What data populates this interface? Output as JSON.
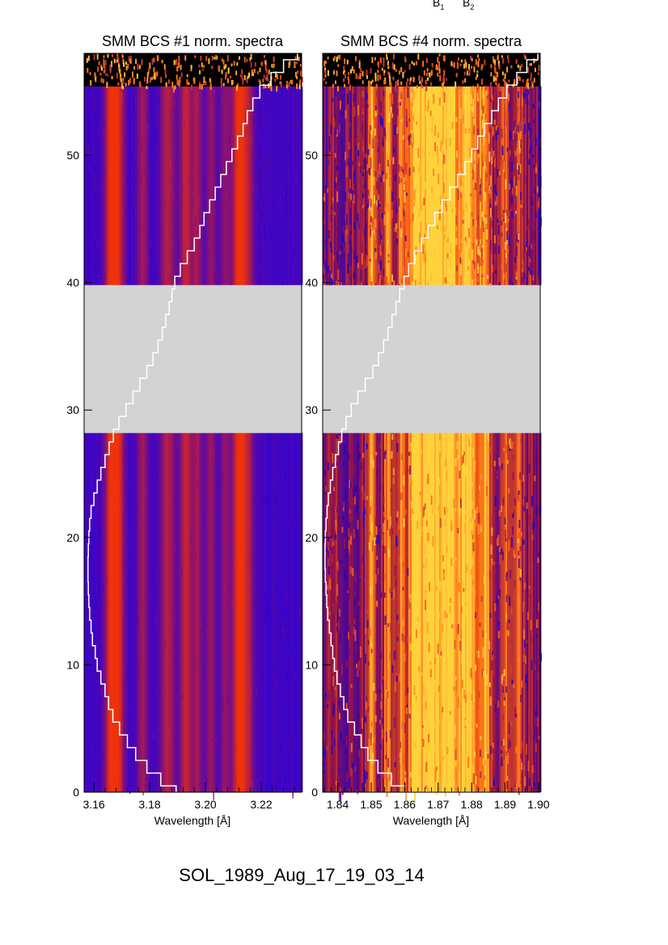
{
  "header": {
    "labels": [
      "B",
      "B"
    ],
    "subscripts": [
      "1",
      "2"
    ]
  },
  "footer": {
    "title": "SOL_1989_Aug_17_19_03_14"
  },
  "colors": {
    "gap": "#d3d3d3",
    "trace": "#ffffff",
    "axis": "#000000",
    "background": "#ffffff"
  },
  "chart_data": [
    {
      "type": "heatmap",
      "title": "SMM BCS #1 norm. spectra",
      "xlabel": "Wavelength [Å]",
      "ylabel": "",
      "xlim": [
        3.1565,
        3.2345
      ],
      "ylim": [
        0,
        58
      ],
      "xticks": [
        3.16,
        3.18,
        3.2,
        3.22
      ],
      "xtick_labels": [
        "3.16",
        "3.18",
        "3.20",
        "3.22"
      ],
      "yticks": [
        0,
        10,
        20,
        30,
        40,
        50
      ],
      "ytick_labels": [
        "0",
        "10",
        "20",
        "30",
        "40",
        "50"
      ],
      "data_gap": [
        28.2,
        39.8
      ],
      "noise_region": [
        55.4,
        58
      ],
      "colormap": "blue-red",
      "emission_lines": [
        {
          "wavelength": 3.1665,
          "strength": 1.0,
          "width": 0.0016
        },
        {
          "wavelength": 3.169,
          "strength": 0.55,
          "width": 0.0014
        },
        {
          "wavelength": 3.1775,
          "strength": 0.45,
          "width": 0.0013
        },
        {
          "wavelength": 3.1865,
          "strength": 0.55,
          "width": 0.0018
        },
        {
          "wavelength": 3.193,
          "strength": 0.65,
          "width": 0.0014
        },
        {
          "wavelength": 3.197,
          "strength": 0.45,
          "width": 0.0013
        },
        {
          "wavelength": 3.202,
          "strength": 0.4,
          "width": 0.0012
        },
        {
          "wavelength": 3.207,
          "strength": 0.35,
          "width": 0.0012
        },
        {
          "wavelength": 3.2125,
          "strength": 1.0,
          "width": 0.0019
        },
        {
          "wavelength": 3.216,
          "strength": 0.3,
          "width": 0.0012
        }
      ],
      "continuum": 0.12,
      "trace": {
        "y": [
          0,
          1,
          2,
          3,
          4,
          5,
          6,
          7,
          8,
          9,
          10,
          11,
          12,
          13,
          14,
          15,
          16,
          17,
          18,
          19,
          20,
          21,
          22,
          23,
          24,
          25,
          26,
          27,
          28,
          29,
          30,
          31,
          32,
          33,
          34,
          35,
          36,
          37,
          38,
          39,
          40,
          41,
          42,
          43,
          44,
          45,
          46,
          47,
          48,
          49,
          50,
          51,
          52,
          53,
          54,
          55,
          56,
          57,
          58
        ],
        "x": [
          3.1895,
          3.184,
          3.179,
          3.175,
          3.172,
          3.1692,
          3.1668,
          3.1653,
          3.164,
          3.1625,
          3.1612,
          3.1605,
          3.1595,
          3.159,
          3.1585,
          3.1582,
          3.158,
          3.1579,
          3.1579,
          3.158,
          3.1582,
          3.1585,
          3.159,
          3.16,
          3.1612,
          3.1625,
          3.164,
          3.1655,
          3.167,
          3.169,
          3.1715,
          3.174,
          3.1765,
          3.179,
          3.1812,
          3.183,
          3.1845,
          3.1858,
          3.187,
          3.188,
          3.189,
          3.191,
          3.1935,
          3.196,
          3.198,
          3.1995,
          3.2015,
          3.2035,
          3.2055,
          3.2075,
          3.2095,
          3.2115,
          3.2135,
          3.215,
          3.217,
          3.2195,
          3.2235,
          3.228,
          3.233
        ]
      }
    },
    {
      "type": "heatmap",
      "title": "SMM BCS #4 norm. spectra",
      "xlabel": "Wavelength [Å]",
      "ylabel": "",
      "xlim": [
        1.8355,
        1.9005
      ],
      "ylim": [
        0,
        58
      ],
      "xticks": [
        1.84,
        1.85,
        1.86,
        1.87,
        1.88,
        1.89,
        1.9
      ],
      "xtick_labels": [
        "1.84",
        "1.85",
        "1.86",
        "1.87",
        "1.88",
        "1.89",
        "1.90"
      ],
      "yticks": [
        0,
        10,
        20,
        30,
        40,
        50
      ],
      "ytick_labels": [
        "0",
        "10",
        "20",
        "30",
        "40",
        "50"
      ],
      "data_gap": [
        28.2,
        39.8
      ],
      "noise_region": [
        55.4,
        58
      ],
      "colormap": "blue-red-yellow",
      "emission_lines": [
        {
          "wavelength": 1.8502,
          "strength": 0.6,
          "width": 0.0008
        },
        {
          "wavelength": 1.855,
          "strength": 0.55,
          "width": 0.0009
        },
        {
          "wavelength": 1.859,
          "strength": 0.5,
          "width": 0.0008
        },
        {
          "wavelength": 1.863,
          "strength": 0.75,
          "width": 0.0015
        },
        {
          "wavelength": 1.868,
          "strength": 0.85,
          "width": 0.0025
        },
        {
          "wavelength": 1.8735,
          "strength": 0.75,
          "width": 0.0018
        },
        {
          "wavelength": 1.879,
          "strength": 0.8,
          "width": 0.002
        },
        {
          "wavelength": 1.884,
          "strength": 0.6,
          "width": 0.0012
        },
        {
          "wavelength": 1.89,
          "strength": 0.35,
          "width": 0.001
        },
        {
          "wavelength": 1.894,
          "strength": 0.3,
          "width": 0.001
        }
      ],
      "continuum": 0.25,
      "trace": {
        "y": [
          0,
          1,
          2,
          3,
          4,
          5,
          6,
          7,
          8,
          9,
          10,
          11,
          12,
          13,
          14,
          15,
          16,
          17,
          18,
          19,
          20,
          21,
          22,
          23,
          24,
          25,
          26,
          27,
          28,
          29,
          30,
          31,
          32,
          33,
          34,
          35,
          36,
          37,
          38,
          39,
          40,
          41,
          42,
          43,
          44,
          45,
          46,
          47,
          48,
          49,
          50,
          51,
          52,
          53,
          54,
          55,
          56,
          57,
          58
        ],
        "x": [
          1.86,
          1.856,
          1.852,
          1.849,
          1.847,
          1.845,
          1.843,
          1.8418,
          1.8408,
          1.8398,
          1.839,
          1.8385,
          1.838,
          1.8375,
          1.837,
          1.8367,
          1.8365,
          1.8363,
          1.8362,
          1.8362,
          1.8363,
          1.8365,
          1.8368,
          1.8372,
          1.8378,
          1.8385,
          1.8393,
          1.8402,
          1.8412,
          1.8425,
          1.844,
          1.846,
          1.8482,
          1.8505,
          1.8522,
          1.8537,
          1.855,
          1.8562,
          1.8574,
          1.8585,
          1.8598,
          1.8612,
          1.863,
          1.865,
          1.867,
          1.869,
          1.8712,
          1.8735,
          1.8758,
          1.878,
          1.88,
          1.8818,
          1.8838,
          1.886,
          1.888,
          1.8905,
          1.8935,
          1.8965,
          1.8998
        ]
      }
    }
  ]
}
